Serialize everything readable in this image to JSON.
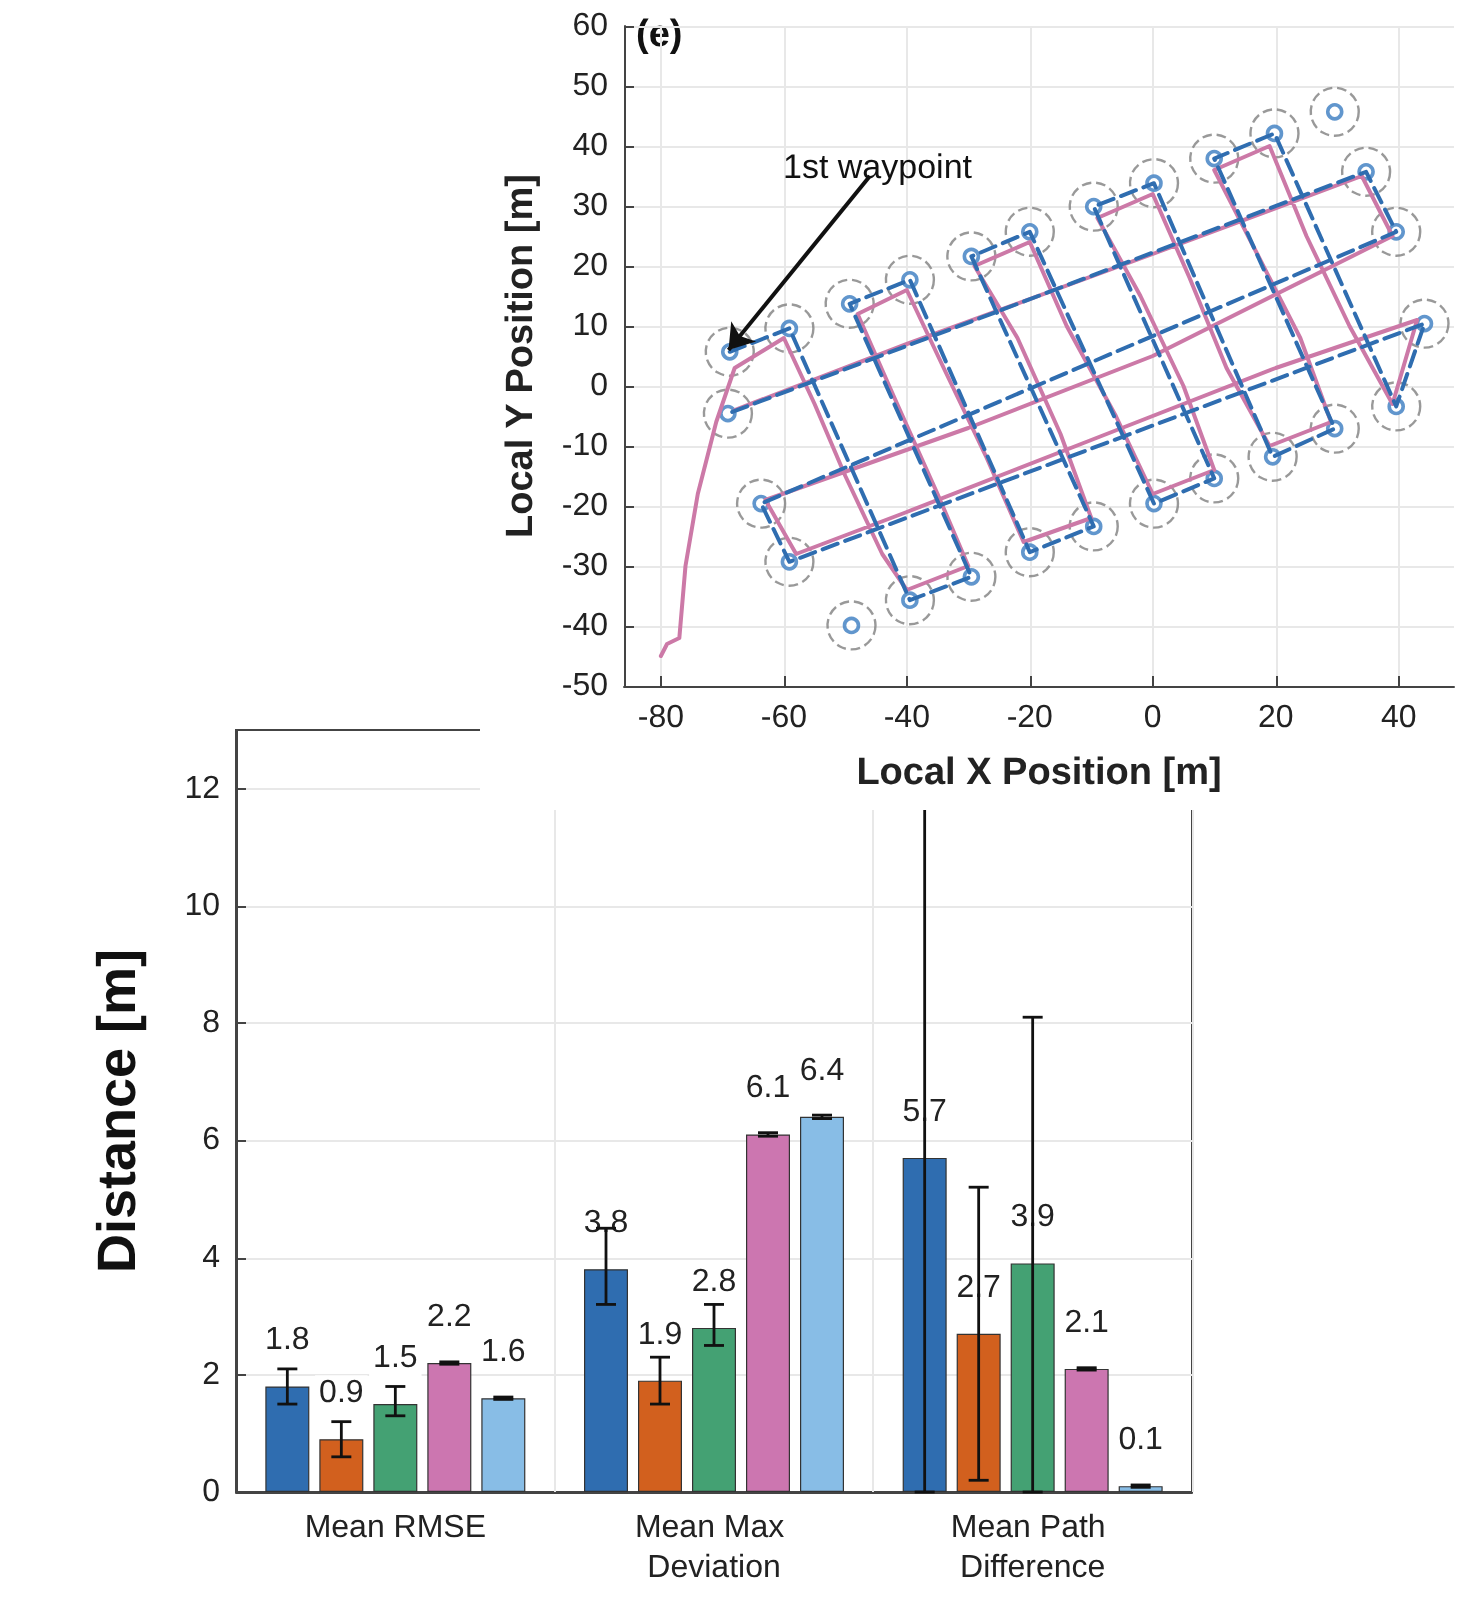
{
  "chart_data": [
    {
      "type": "line",
      "xlabel": "Local X Position [m]",
      "ylabel": "Local Y Position [m]",
      "annotations": [
        "(e)",
        {
          "text": "1st waypoint",
          "x": -69,
          "y": 6
        }
      ],
      "xlim": [
        -86,
        49
      ],
      "xticks": [
        -80,
        -60,
        -40,
        -20,
        0,
        20,
        40
      ],
      "ylim": [
        -50,
        60
      ],
      "yticks": [
        -50,
        -40,
        -30,
        -20,
        -10,
        0,
        10,
        20,
        30,
        40,
        50,
        60
      ],
      "grid": true,
      "series": [
        {
          "type": "line",
          "color": "#cc79a7",
          "line_style": "solid",
          "marker": "none",
          "x": [
            -80,
            -79,
            -77,
            -76,
            -74,
            -71,
            -68,
            -60,
            -55,
            -50,
            -44,
            -40,
            -30,
            -35,
            -42,
            -48,
            -40,
            -34,
            -27,
            -21,
            -10,
            -15,
            -22,
            -29,
            -20,
            -14,
            -6,
            0,
            10,
            5,
            -2,
            -9,
            0,
            6,
            12,
            19,
            29,
            24,
            17,
            10,
            19,
            25,
            32,
            39,
            43,
            20,
            -10,
            -40,
            -58,
            -63,
            -30,
            0,
            39,
            34,
            0,
            -40,
            -68
          ],
          "values": [
            -45,
            -43,
            -42,
            -30,
            -18,
            -6,
            3,
            8,
            -3,
            -15,
            -28,
            -34,
            -30,
            -18,
            -2,
            12,
            16,
            3,
            -12,
            -26,
            -22,
            -8,
            8,
            20,
            24,
            10,
            -5,
            -18,
            -14,
            0,
            15,
            28,
            32,
            18,
            3,
            -10,
            -6,
            8,
            22,
            36,
            40,
            25,
            10,
            -3,
            11,
            3,
            -9,
            -21,
            -28,
            -19,
            -7,
            5,
            25,
            35,
            22,
            7,
            -4
          ]
        },
        {
          "type": "line",
          "color": "#2f6db0",
          "line_style": "dashed",
          "marker": "none",
          "x": [
            -68.8,
            -59.1,
            -39.5,
            -29.5,
            -49.3,
            -39.5,
            -20,
            -9.6,
            -29.5,
            -20,
            0.2,
            10,
            -9.6,
            0.2,
            19.5,
            29.6,
            10,
            19.8,
            39.6,
            44.2,
            -59.1,
            -63.7,
            39.6,
            34.7,
            -69.1
          ],
          "values": [
            5.7,
            9.6,
            -35.7,
            -31.8,
            13.7,
            17.7,
            -27.7,
            -23.4,
            21.6,
            25.7,
            -19.6,
            -15.4,
            29.9,
            33.8,
            -11.8,
            -7.1,
            37.9,
            42.1,
            -3.4,
            10.4,
            -29.3,
            -19.6,
            25.7,
            35.7,
            -4.6
          ]
        },
        {
          "type": "scatter",
          "color": "#808080",
          "line_style": "dashed",
          "marker": "circle",
          "x": [
            -68.8,
            -59.1,
            -49.3,
            -39.5,
            -29.5,
            -20,
            -9.6,
            0.2,
            10,
            19.8,
            29.6,
            34.7,
            39.6,
            44.2,
            39.6,
            29.6,
            19.5,
            10,
            0.2,
            -9.6,
            -20,
            -29.5,
            -39.5,
            -49,
            -59.1,
            -63.7,
            -69.1
          ],
          "values": [
            5.7,
            9.6,
            13.7,
            17.7,
            21.6,
            25.7,
            29.9,
            33.8,
            37.9,
            42.1,
            45.7,
            35.7,
            25.7,
            10.4,
            -3.4,
            -7.1,
            -11.8,
            -15.4,
            -19.6,
            -23.4,
            -27.7,
            -31.8,
            -35.7,
            -39.9,
            -29.3,
            -19.6,
            -4.6
          ]
        },
        {
          "type": "scatter",
          "color": "#3a7cc0",
          "marker": "circle",
          "x": [
            -68.8,
            -59.1,
            -49.3,
            -39.5,
            -29.5,
            -20,
            -9.6,
            0.2,
            10,
            19.8,
            29.6,
            34.7,
            39.6,
            44.2,
            39.6,
            29.6,
            19.5,
            10,
            0.2,
            -9.6,
            -20,
            -29.5,
            -39.5,
            -49,
            -59.1,
            -63.7,
            -69.1
          ],
          "values": [
            5.7,
            9.6,
            13.7,
            17.7,
            21.6,
            25.7,
            29.9,
            33.8,
            37.9,
            42.1,
            45.7,
            35.7,
            25.7,
            10.4,
            -3.4,
            -7.1,
            -11.8,
            -15.4,
            -19.6,
            -23.4,
            -27.7,
            -31.8,
            -35.7,
            -39.9,
            -29.3,
            -19.6,
            -4.6
          ]
        }
      ]
    },
    {
      "type": "bar",
      "ylabel": "Distance [m]",
      "categories": [
        "Mean RMSE",
        "Mean Max Deviation",
        "Mean Path Difference"
      ],
      "ylim": [
        0,
        13
      ],
      "yticks": [
        0,
        2,
        4,
        6,
        8,
        10,
        12
      ],
      "grid": true,
      "data_labels": true,
      "series": [
        {
          "color": "#2f6db0",
          "values": [
            1.8,
            3.8,
            5.7
          ],
          "errors": [
            [
              1.5,
              2.1
            ],
            [
              3.2,
              4.5
            ],
            [
              0,
              13
            ]
          ]
        },
        {
          "color": "#d2601e",
          "values": [
            0.9,
            1.9,
            2.7
          ],
          "errors": [
            [
              0.6,
              1.2
            ],
            [
              1.5,
              2.3
            ],
            [
              0.2,
              5.2
            ]
          ]
        },
        {
          "color": "#44a173",
          "values": [
            1.5,
            2.8,
            3.9
          ],
          "errors": [
            [
              1.3,
              1.8
            ],
            [
              2.5,
              3.2
            ],
            [
              0,
              8.1
            ]
          ]
        },
        {
          "color": "#cc76b0",
          "values": [
            2.2,
            6.1,
            2.1
          ],
          "errors": [
            [
              2.18,
              2.22
            ],
            [
              6.07,
              6.13
            ],
            [
              2.08,
              2.12
            ]
          ]
        },
        {
          "color": "#88bde6",
          "values": [
            1.6,
            6.4,
            0.1
          ],
          "errors": [
            [
              1.58,
              1.62
            ],
            [
              6.37,
              6.43
            ],
            [
              0.08,
              0.12
            ]
          ]
        }
      ]
    }
  ]
}
